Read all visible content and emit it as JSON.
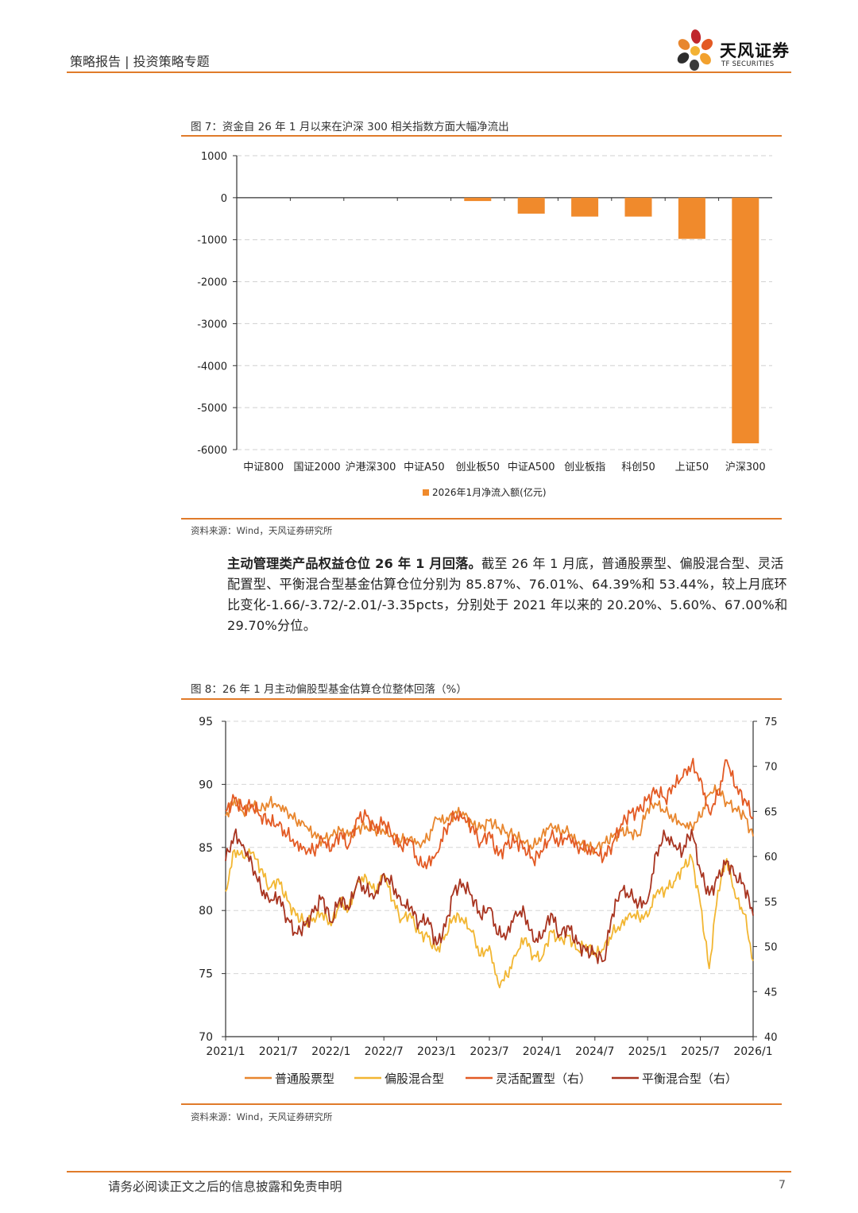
{
  "header": {
    "title": "策略报告 | 投资策略专题",
    "logo_cn": "天风证券",
    "logo_en": "TF SECURITIES"
  },
  "figure7": {
    "title": "图 7：资金自 26 年 1 月以来在沪深 300 相关指数方面大幅净流出",
    "source": "资料来源：Wind，天风证券研究所"
  },
  "paragraph": {
    "lead": "主动管理类产品权益仓位 26 年 1 月回落。",
    "body": "截至 26 年 1 月底，普通股票型、偏股混合型、灵活配置型、平衡混合型基金估算仓位分别为 85.87%、76.01%、64.39%和 53.44%，较上月底环比变化-1.66/-3.72/-2.01/-3.35pcts，分别处于 2021 年以来的 20.20%、5.60%、67.00%和 29.70%分位。"
  },
  "figure8": {
    "title": "图 8：26 年 1 月主动偏股型基金估算仓位整体回落（%）",
    "source": "资料来源：Wind，天风证券研究所"
  },
  "footer": {
    "disclaimer": "请务必阅读正文之后的信息披露和免责申明",
    "page": "7"
  },
  "chart_data": [
    {
      "type": "bar",
      "categories": [
        "中证800",
        "国证2000",
        "沪港深300",
        "中证A50",
        "创业板50",
        "中证A500",
        "创业板指",
        "科创50",
        "上证50",
        "沪深300"
      ],
      "series": [
        {
          "name": "2026年1月净流入额(亿元)",
          "values": [
            0,
            0,
            0,
            0,
            -80,
            -380,
            -450,
            -450,
            -980,
            -5850
          ],
          "color": "#f08a2c"
        }
      ],
      "ylim": [
        -6000,
        1000
      ],
      "yticks": [
        "1000",
        "0",
        "-1000",
        "-2000",
        "-3000",
        "-4000",
        "-5000",
        "-6000"
      ],
      "grid": true,
      "legend": "bottom"
    },
    {
      "type": "line",
      "x": [
        "2021/1",
        "2021/2",
        "2021/3",
        "2021/4",
        "2021/5",
        "2021/6",
        "2021/7",
        "2021/8",
        "2021/9",
        "2021/10",
        "2021/11",
        "2021/12",
        "2022/1",
        "2022/2",
        "2022/3",
        "2022/4",
        "2022/5",
        "2022/6",
        "2022/7",
        "2022/8",
        "2022/9",
        "2022/10",
        "2022/11",
        "2022/12",
        "2023/1",
        "2023/2",
        "2023/3",
        "2023/4",
        "2023/5",
        "2023/6",
        "2023/7",
        "2023/8",
        "2023/9",
        "2023/10",
        "2023/11",
        "2023/12",
        "2024/1",
        "2024/2",
        "2024/3",
        "2024/4",
        "2024/5",
        "2024/6",
        "2024/7",
        "2024/8",
        "2024/9",
        "2024/10",
        "2024/11",
        "2024/12",
        "2025/1",
        "2025/2",
        "2025/3",
        "2025/4",
        "2025/5",
        "2025/6",
        "2025/7",
        "2025/8",
        "2025/9",
        "2025/10",
        "2025/11",
        "2025/12",
        "2026/1"
      ],
      "xticks": [
        "2021/1",
        "2021/7",
        "2022/1",
        "2022/7",
        "2023/1",
        "2023/7",
        "2024/1",
        "2024/7",
        "2025/1",
        "2025/7",
        "2026/1"
      ],
      "yticks_left": [
        "95",
        "90",
        "85",
        "80",
        "75",
        "70"
      ],
      "yticks_right": [
        "75",
        "70",
        "65",
        "60",
        "55",
        "50",
        "45",
        "40"
      ],
      "ylim_left": [
        70,
        95
      ],
      "ylim_right": [
        40,
        75
      ],
      "series": [
        {
          "name": "普通股票型",
          "axis": "left",
          "color": "#e8862e",
          "values": [
            87.5,
            88.8,
            87.8,
            88.3,
            87.9,
            88.6,
            88.4,
            87.9,
            87.1,
            86.7,
            86.0,
            85.6,
            86.0,
            86.4,
            85.9,
            86.5,
            86.7,
            86.4,
            86.3,
            85.8,
            85.5,
            85.8,
            85.3,
            85.7,
            87.3,
            87.0,
            87.7,
            87.8,
            86.9,
            86.5,
            87.1,
            86.6,
            86.2,
            85.9,
            85.3,
            85.0,
            86.0,
            86.9,
            86.3,
            86.2,
            85.3,
            85.1,
            84.9,
            85.4,
            85.8,
            86.3,
            86.2,
            86.0,
            88.1,
            88.4,
            87.8,
            87.3,
            86.9,
            86.7,
            87.4,
            89.2,
            89.6,
            88.6,
            88.1,
            87.53,
            85.87
          ]
        },
        {
          "name": "偏股混合型",
          "axis": "left",
          "color": "#f2b632",
          "values": [
            81.5,
            84.8,
            84.2,
            84.6,
            83.3,
            81.8,
            82.5,
            80.8,
            79.6,
            79.1,
            79.4,
            79.8,
            78.8,
            80.6,
            80.1,
            82.4,
            82.6,
            81.4,
            82.9,
            80.8,
            79.3,
            79.8,
            78.2,
            77.9,
            76.8,
            78.1,
            79.6,
            79.2,
            78.3,
            76.4,
            77.2,
            74.2,
            74.8,
            76.4,
            77.8,
            76.4,
            76.3,
            78.4,
            77.6,
            78.0,
            76.9,
            77.3,
            76.5,
            76.9,
            78.2,
            78.9,
            79.8,
            79.5,
            79.5,
            81.4,
            81.6,
            82.3,
            83.4,
            84.2,
            80.5,
            75.4,
            81.6,
            84.1,
            81.0,
            79.73,
            76.01
          ]
        },
        {
          "name": "灵活配置型（右）",
          "axis": "right",
          "color": "#e35a24",
          "values": [
            65.0,
            66.4,
            65.2,
            65.8,
            64.5,
            63.8,
            63.4,
            62.4,
            61.5,
            60.9,
            60.6,
            61.8,
            60.6,
            62.6,
            61.2,
            64.3,
            64.5,
            63.0,
            63.9,
            62.3,
            61.0,
            61.8,
            59.0,
            59.3,
            60.4,
            63.0,
            64.4,
            64.2,
            63.3,
            61.5,
            62.7,
            60.1,
            61.3,
            61.7,
            61.0,
            59.6,
            60.5,
            62.2,
            61.6,
            62.4,
            61.1,
            60.8,
            60.4,
            59.8,
            61.4,
            63.6,
            64.8,
            65.0,
            66.4,
            67.4,
            66.4,
            67.8,
            68.8,
            70.2,
            68.7,
            64.9,
            66.8,
            70.7,
            67.6,
            66.4,
            64.39
          ]
        },
        {
          "name": "平衡混合型（右）",
          "axis": "right",
          "color": "#a83420",
          "values": [
            59.5,
            62.5,
            61.3,
            59.2,
            56.4,
            54.9,
            55.5,
            53.2,
            51.5,
            52.3,
            53.8,
            55.5,
            52.7,
            55.4,
            54.1,
            57.2,
            56.2,
            55.7,
            58.1,
            56.8,
            54.6,
            54.3,
            52.6,
            53.2,
            50.2,
            52.2,
            56.3,
            57.0,
            55.7,
            53.3,
            54.3,
            51.3,
            51.4,
            53.9,
            53.7,
            50.6,
            51.0,
            53.7,
            51.3,
            52.3,
            50.3,
            49.5,
            49.3,
            48.4,
            53.6,
            56.2,
            55.6,
            54.8,
            55.1,
            60.5,
            62.3,
            61.1,
            60.5,
            63.0,
            58.4,
            55.7,
            57.6,
            59.5,
            57.9,
            56.79,
            53.44
          ]
        }
      ],
      "grid": true,
      "legend": "bottom"
    }
  ]
}
